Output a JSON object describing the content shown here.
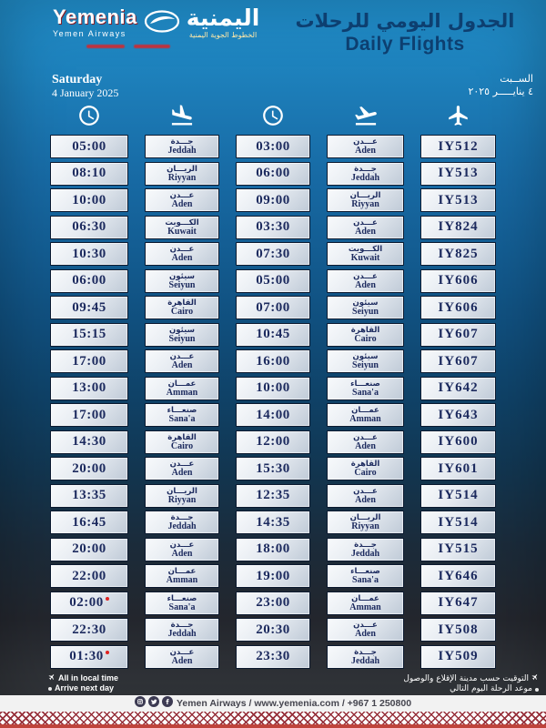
{
  "header": {
    "logo": {
      "name": "Yemenia",
      "subtitle": "Yemen Airways",
      "arabic_name": "اليمنية",
      "arabic_subtitle": "الخطوط الجوية اليمنية"
    },
    "title_ar": "الجدول اليومي للرحلات",
    "title_en": "Daily Flights"
  },
  "date": {
    "en_day": "Saturday",
    "en_date": "4 January 2025",
    "ar_day": "الســبت",
    "ar_date": "٤ ينايـــــر ٢٠٢٥"
  },
  "columns": [
    {
      "icon": "clock"
    },
    {
      "icon": "plane-landing"
    },
    {
      "icon": "clock"
    },
    {
      "icon": "plane-takeoff"
    },
    {
      "icon": "plane"
    }
  ],
  "flights": [
    {
      "arr_time": "05:00",
      "arr_star": false,
      "arr_ar": "جـــدة",
      "arr_en": "Jeddah",
      "dep_time": "03:00",
      "dep_ar": "عـــدن",
      "dep_en": "Aden",
      "code": "IY512"
    },
    {
      "arr_time": "08:10",
      "arr_star": false,
      "arr_ar": "الريـــان",
      "arr_en": "Riyyan",
      "dep_time": "06:00",
      "dep_ar": "جـــدة",
      "dep_en": "Jeddah",
      "code": "IY513"
    },
    {
      "arr_time": "10:00",
      "arr_star": false,
      "arr_ar": "عـــدن",
      "arr_en": "Aden",
      "dep_time": "09:00",
      "dep_ar": "الريـــان",
      "dep_en": "Riyyan",
      "code": "IY513"
    },
    {
      "arr_time": "06:30",
      "arr_star": false,
      "arr_ar": "الكـــويت",
      "arr_en": "Kuwait",
      "dep_time": "03:30",
      "dep_ar": "عـــدن",
      "dep_en": "Aden",
      "code": "IY824"
    },
    {
      "arr_time": "10:30",
      "arr_star": false,
      "arr_ar": "عـــدن",
      "arr_en": "Aden",
      "dep_time": "07:30",
      "dep_ar": "الكـــويت",
      "dep_en": "Kuwait",
      "code": "IY825"
    },
    {
      "arr_time": "06:00",
      "arr_star": false,
      "arr_ar": "سيئون",
      "arr_en": "Seiyun",
      "dep_time": "05:00",
      "dep_ar": "عـــدن",
      "dep_en": "Aden",
      "code": "IY606"
    },
    {
      "arr_time": "09:45",
      "arr_star": false,
      "arr_ar": "القاهرة",
      "arr_en": "Cairo",
      "dep_time": "07:00",
      "dep_ar": "سيئون",
      "dep_en": "Seiyun",
      "code": "IY606"
    },
    {
      "arr_time": "15:15",
      "arr_star": false,
      "arr_ar": "سيئون",
      "arr_en": "Seiyun",
      "dep_time": "10:45",
      "dep_ar": "القاهرة",
      "dep_en": "Cairo",
      "code": "IY607"
    },
    {
      "arr_time": "17:00",
      "arr_star": false,
      "arr_ar": "عـــدن",
      "arr_en": "Aden",
      "dep_time": "16:00",
      "dep_ar": "سيئون",
      "dep_en": "Seiyun",
      "code": "IY607"
    },
    {
      "arr_time": "13:00",
      "arr_star": false,
      "arr_ar": "عمـــان",
      "arr_en": "Amman",
      "dep_time": "10:00",
      "dep_ar": "صنعـــاء",
      "dep_en": "Sana'a",
      "code": "IY642"
    },
    {
      "arr_time": "17:00",
      "arr_star": false,
      "arr_ar": "صنعـــاء",
      "arr_en": "Sana'a",
      "dep_time": "14:00",
      "dep_ar": "عمـــان",
      "dep_en": "Amman",
      "code": "IY643"
    },
    {
      "arr_time": "14:30",
      "arr_star": false,
      "arr_ar": "القاهرة",
      "arr_en": "Cairo",
      "dep_time": "12:00",
      "dep_ar": "عـــدن",
      "dep_en": "Aden",
      "code": "IY600"
    },
    {
      "arr_time": "20:00",
      "arr_star": false,
      "arr_ar": "عـــدن",
      "arr_en": "Aden",
      "dep_time": "15:30",
      "dep_ar": "القاهرة",
      "dep_en": "Cairo",
      "code": "IY601"
    },
    {
      "arr_time": "13:35",
      "arr_star": false,
      "arr_ar": "الريـــان",
      "arr_en": "Riyyan",
      "dep_time": "12:35",
      "dep_ar": "عـــدن",
      "dep_en": "Aden",
      "code": "IY514"
    },
    {
      "arr_time": "16:45",
      "arr_star": false,
      "arr_ar": "جـــدة",
      "arr_en": "Jeddah",
      "dep_time": "14:35",
      "dep_ar": "الريـــان",
      "dep_en": "Riyyan",
      "code": "IY514"
    },
    {
      "arr_time": "20:00",
      "arr_star": false,
      "arr_ar": "عـــدن",
      "arr_en": "Aden",
      "dep_time": "18:00",
      "dep_ar": "جـــدة",
      "dep_en": "Jeddah",
      "code": "IY515"
    },
    {
      "arr_time": "22:00",
      "arr_star": false,
      "arr_ar": "عمـــان",
      "arr_en": "Amman",
      "dep_time": "19:00",
      "dep_ar": "صنعـــاء",
      "dep_en": "Sana'a",
      "code": "IY646"
    },
    {
      "arr_time": "02:00",
      "arr_star": true,
      "arr_ar": "صنعـــاء",
      "arr_en": "Sana'a",
      "dep_time": "23:00",
      "dep_ar": "عمـــان",
      "dep_en": "Amman",
      "code": "IY647"
    },
    {
      "arr_time": "22:30",
      "arr_star": false,
      "arr_ar": "جـــدة",
      "arr_en": "Jeddah",
      "dep_time": "20:30",
      "dep_ar": "عـــدن",
      "dep_en": "Aden",
      "code": "IY508"
    },
    {
      "arr_time": "01:30",
      "arr_star": true,
      "arr_ar": "عـــدن",
      "arr_en": "Aden",
      "dep_time": "23:30",
      "dep_ar": "جـــدة",
      "dep_en": "Jeddah",
      "code": "IY509"
    }
  ],
  "footnotes_en": [
    {
      "marker": "plane",
      "text": "All in local time"
    },
    {
      "marker": "dot",
      "text": "Arrive next day"
    }
  ],
  "footnotes_ar": [
    {
      "marker": "plane",
      "text": "التوقيت حسب مدينة الإقلاع والوصول"
    },
    {
      "marker": "dot",
      "text": "موعد الرحلة اليوم التالي"
    }
  ],
  "footer": {
    "contact": "Yemen Airways / www.yemenia.com / +967 1 250800",
    "social": [
      "instagram",
      "twitter",
      "facebook"
    ]
  },
  "colors": {
    "accent_red": "#cf2b31",
    "navy_text": "#1c2a5e",
    "title_blue": "#0d3f70",
    "bg_blue_top": "#2190ce",
    "footer_dark": "#313439",
    "pattern_red": "#96303a"
  }
}
